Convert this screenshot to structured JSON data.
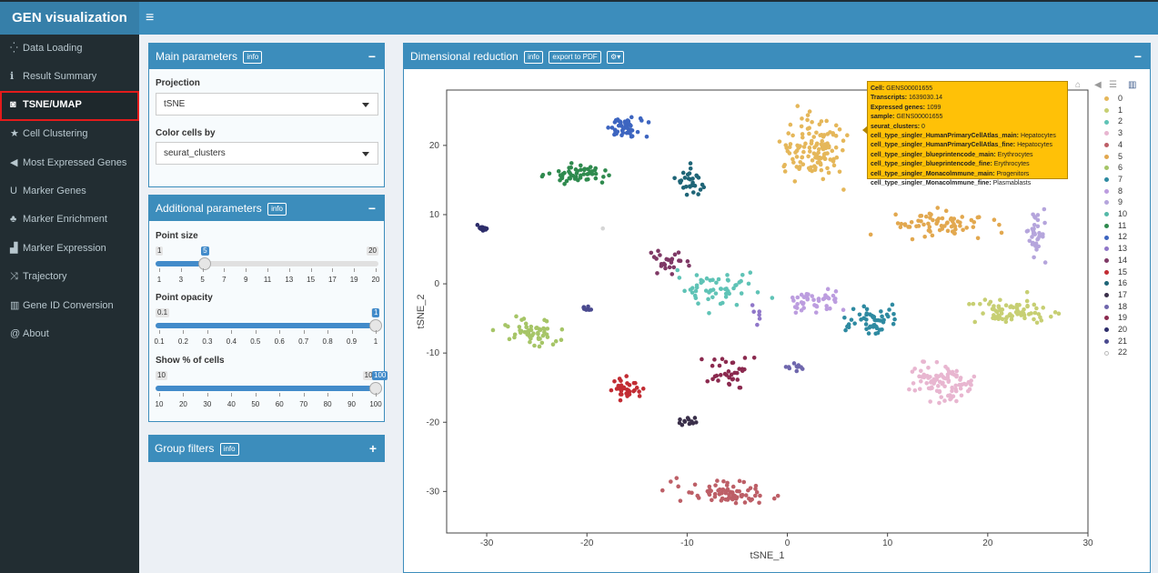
{
  "app": {
    "title": "GEN visualization"
  },
  "sidebar": {
    "items": [
      {
        "label": "Data Loading",
        "icon": "spinner-icon",
        "glyph": "⁛"
      },
      {
        "label": "Result Summary",
        "icon": "info-icon",
        "glyph": "ℹ"
      },
      {
        "label": "TSNE/UMAP",
        "icon": "binoculars-icon",
        "glyph": "◙"
      },
      {
        "label": "Cell Clustering",
        "icon": "star-icon",
        "glyph": "★"
      },
      {
        "label": "Most Expressed Genes",
        "icon": "bullhorn-icon",
        "glyph": "◀"
      },
      {
        "label": "Marker Genes",
        "icon": "magnet-icon",
        "glyph": "U"
      },
      {
        "label": "Marker Enrichment",
        "icon": "sitemap-icon",
        "glyph": "♣"
      },
      {
        "label": "Marker Expression",
        "icon": "signal-icon",
        "glyph": "▟"
      },
      {
        "label": "Trajectory",
        "icon": "random-icon",
        "glyph": "⤨"
      },
      {
        "label": "Gene ID Conversion",
        "icon": "barcode-icon",
        "glyph": "▥"
      },
      {
        "label": "About",
        "icon": "at-icon",
        "glyph": "@"
      }
    ],
    "active": "TSNE/UMAP"
  },
  "main_params": {
    "title": "Main parameters",
    "info": "info",
    "projection_label": "Projection",
    "projection_value": "tSNE",
    "color_label": "Color cells by",
    "color_value": "seurat_clusters"
  },
  "additional_params": {
    "title": "Additional parameters",
    "info": "info",
    "point_size": {
      "label": "Point size",
      "min": "1",
      "max": "20",
      "value": "5",
      "fraction": 0.2105,
      "ticks": [
        "1",
        "3",
        "5",
        "7",
        "9",
        "11",
        "13",
        "15",
        "17",
        "19",
        "20"
      ]
    },
    "point_opacity": {
      "label": "Point opacity",
      "min": "0.1",
      "max": "1",
      "value": "1",
      "fraction": 1.0,
      "ticks": [
        "0.1",
        "0.2",
        "0.3",
        "0.4",
        "0.5",
        "0.6",
        "0.7",
        "0.8",
        "0.9",
        "1"
      ]
    },
    "show_pct": {
      "label": "Show % of cells",
      "min": "10",
      "max": "100",
      "value": "100",
      "fraction": 1.0,
      "ticks": [
        "10",
        "20",
        "30",
        "40",
        "50",
        "60",
        "70",
        "80",
        "90",
        "100"
      ]
    }
  },
  "group_filters": {
    "title": "Group filters",
    "info": "info"
  },
  "plot": {
    "title": "Dimensional reduction",
    "info": "info",
    "export": "export to PDF",
    "tooltip": [
      [
        "Cell",
        "GENS00001655"
      ],
      [
        "Transcripts",
        "1639030.14"
      ],
      [
        "Expressed genes",
        "1099"
      ],
      [
        "sample",
        "GENS00001655"
      ],
      [
        "seurat_clusters",
        "0"
      ],
      [
        "cell_type_singler_HumanPrimaryCellAtlas_main",
        "Hepatocytes"
      ],
      [
        "cell_type_singler_HumanPrimaryCellAtlas_fine",
        "Hepatocytes"
      ],
      [
        "cell_type_singler_blueprintencode_main",
        "Erythrocytes"
      ],
      [
        "cell_type_singler_blueprintencode_fine",
        "Erythrocytes"
      ],
      [
        "cell_type_singler_Monacolmmune_main",
        "Progenitors"
      ],
      [
        "cell_type_singler_Monacolmmune_fine",
        "Plasmablasts"
      ]
    ]
  },
  "chart_data": {
    "type": "scatter",
    "xlabel": "tSNE_1",
    "ylabel": "tSNE_2",
    "xlim": [
      -34,
      30
    ],
    "ylim": [
      -36,
      28
    ],
    "xticks": [
      -30,
      -20,
      -10,
      0,
      10,
      20,
      30
    ],
    "yticks": [
      -30,
      -20,
      -10,
      0,
      10,
      20
    ],
    "legend_position": "right",
    "series": [
      {
        "name": "0",
        "color": "#e5b75a",
        "center": [
          2.5,
          19.5
        ],
        "spread": [
          3.3,
          4.5
        ],
        "n": 130
      },
      {
        "name": "1",
        "color": "#c7cf73",
        "center": [
          22.5,
          -4
        ],
        "spread": [
          4,
          1.8
        ],
        "n": 75
      },
      {
        "name": "2",
        "color": "#5fc3b6",
        "center": [
          -7,
          -0.5
        ],
        "spread": [
          4,
          2.8
        ],
        "n": 55
      },
      {
        "name": "3",
        "color": "#e8b6d0",
        "center": [
          15.5,
          -14
        ],
        "spread": [
          3.3,
          2.6
        ],
        "n": 90
      },
      {
        "name": "4",
        "color": "#bd5f67",
        "center": [
          -6.5,
          -30
        ],
        "spread": [
          4.5,
          1.8
        ],
        "n": 75
      },
      {
        "name": "5",
        "color": "#e2a84f",
        "center": [
          15.5,
          8.5
        ],
        "spread": [
          5.5,
          1.8
        ],
        "n": 70
      },
      {
        "name": "6",
        "color": "#a6c567",
        "center": [
          -25.5,
          -7
        ],
        "spread": [
          3,
          1.8
        ],
        "n": 55
      },
      {
        "name": "7",
        "color": "#2e8aa1",
        "center": [
          8.5,
          -5.5
        ],
        "spread": [
          3.5,
          2
        ],
        "n": 50
      },
      {
        "name": "8",
        "color": "#bc9ddf",
        "center": [
          3,
          -2.5
        ],
        "spread": [
          2.6,
          1.5
        ],
        "n": 45
      },
      {
        "name": "9",
        "color": "#b5a5dc",
        "center": [
          24.8,
          6.5
        ],
        "spread": [
          1.2,
          4.5
        ],
        "n": 35
      },
      {
        "name": "10",
        "color": "#55b9a8",
        "center": [
          -20,
          16
        ],
        "spread": [
          2.5,
          1.2
        ],
        "n": 0
      },
      {
        "name": "11",
        "color": "#2f8a4e",
        "center": [
          -21,
          16
        ],
        "spread": [
          2.6,
          1.3
        ],
        "n": 55
      },
      {
        "name": "12",
        "color": "#3d65c0",
        "center": [
          -16,
          22.5
        ],
        "spread": [
          1.8,
          1.5
        ],
        "n": 45
      },
      {
        "name": "13",
        "color": "#9077c9",
        "center": [
          -3,
          -4.5
        ],
        "spread": [
          0.8,
          1
        ],
        "n": 6
      },
      {
        "name": "14",
        "color": "#7f3966",
        "center": [
          -12,
          3.5
        ],
        "spread": [
          2,
          1.6
        ],
        "n": 25
      },
      {
        "name": "15",
        "color": "#c22c33",
        "center": [
          -16,
          -15
        ],
        "spread": [
          1.5,
          1.3
        ],
        "n": 35
      },
      {
        "name": "16",
        "color": "#1f6577",
        "center": [
          -9.5,
          14.5
        ],
        "spread": [
          1.5,
          2.2
        ],
        "n": 30
      },
      {
        "name": "17",
        "color": "#3a2f4a",
        "center": [
          -9.8,
          -19.8
        ],
        "spread": [
          1,
          0.5
        ],
        "n": 12
      },
      {
        "name": "18",
        "color": "#6f67ad",
        "center": [
          1,
          -12
        ],
        "spread": [
          1,
          0.6
        ],
        "n": 10
      },
      {
        "name": "19",
        "color": "#8b2a4f",
        "center": [
          -6,
          -13
        ],
        "spread": [
          2.3,
          2.4
        ],
        "n": 35
      },
      {
        "name": "20",
        "color": "#2d2d6a",
        "center": [
          -30.5,
          8
        ],
        "spread": [
          0.6,
          0.35
        ],
        "n": 12
      },
      {
        "name": "21",
        "color": "#4a4a8f",
        "center": [
          -20,
          -3.5
        ],
        "spread": [
          0.5,
          0.8
        ],
        "n": 10
      },
      {
        "name": "22",
        "color": "#d6d6d6",
        "center": [
          -18.5,
          8
        ],
        "spread": [
          0.2,
          0.2
        ],
        "n": 1
      }
    ]
  }
}
